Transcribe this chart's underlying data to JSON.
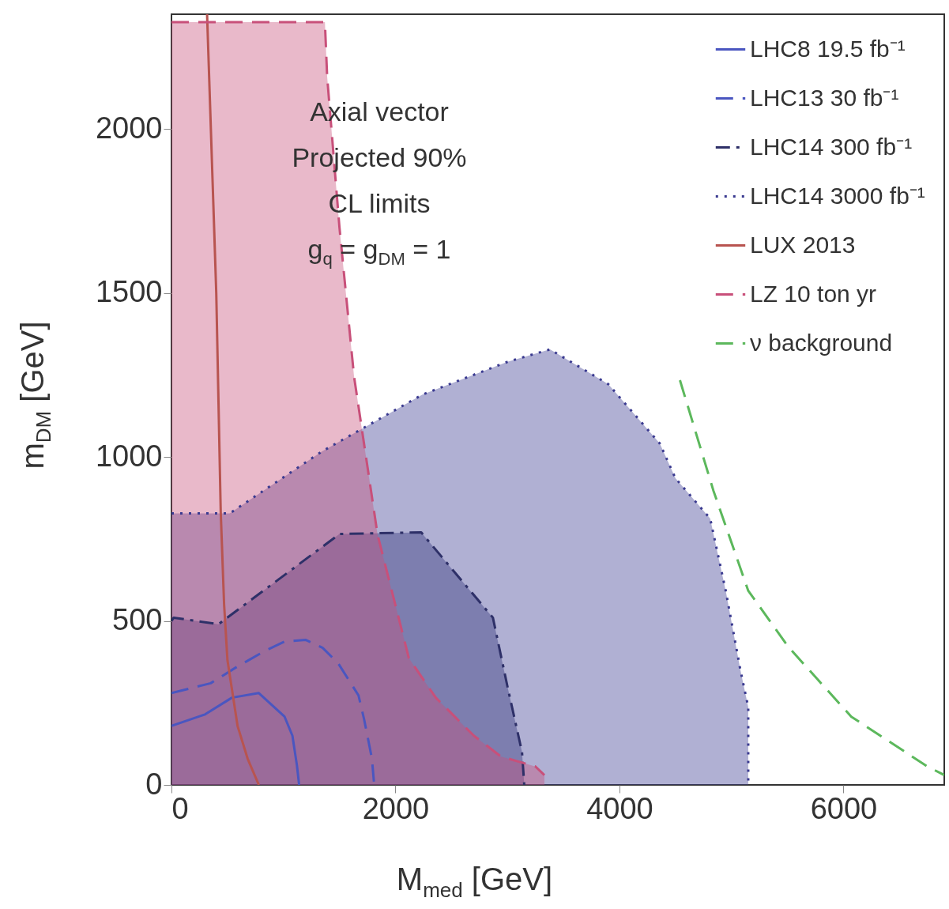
{
  "chart_data": {
    "type": "line",
    "xlabel": "M$_{med}$ [GeV]",
    "ylabel": "m$_{DM}$ [GeV]",
    "xlim": [
      0,
      6900
    ],
    "ylim": [
      0,
      2350
    ],
    "xticks": [
      0,
      2000,
      4000,
      6000
    ],
    "yticks": [
      0,
      500,
      1000,
      1500,
      2000
    ],
    "grid": false,
    "legend": "top right",
    "marker": "none",
    "annotations": [
      "Axial vector",
      "Projected 90%",
      "CL limits",
      "g$_{q}$ = g$_{DM}$ = 1"
    ],
    "series": [
      {
        "name": "LHC8 19.5 fb⁻¹",
        "color": "#4a56c0",
        "line_style": "solid",
        "x": [
          0,
          300,
          540,
          780,
          1010,
          1080,
          1120,
          1140
        ],
        "values": [
          180,
          215,
          266,
          280,
          208,
          150,
          60,
          0
        ]
      },
      {
        "name": "LHC13 30 fb⁻¹",
        "color": "#4a56c0",
        "line_style": "dashed",
        "x": [
          0,
          350,
          570,
          820,
          1010,
          1200,
          1350,
          1490,
          1670,
          1720,
          1790,
          1810
        ],
        "values": [
          280,
          310,
          357,
          406,
          437,
          442,
          418,
          370,
          273,
          200,
          80,
          0
        ]
      },
      {
        "name": "LHC14 300 fb⁻¹",
        "type": "area",
        "color": "#2e3068",
        "line_style": "dashdot",
        "x": [
          0,
          20,
          420,
          1500,
          2230,
          2500,
          2870,
          3000,
          3130,
          3150
        ],
        "values": [
          500,
          510,
          490,
          765,
          770,
          660,
          510,
          300,
          100,
          0
        ]
      },
      {
        "name": "LHC14 3000 fb⁻¹",
        "type": "area",
        "color": "#3a3a90",
        "line_style": "dotted",
        "x": [
          0,
          520,
          1345,
          2240,
          3000,
          3380,
          3900,
          4360,
          4500,
          4810,
          4950,
          5080,
          5150,
          5150
        ],
        "values": [
          828,
          828,
          1017,
          1190,
          1290,
          1328,
          1222,
          1041,
          935,
          812,
          590,
          350,
          237,
          0
        ]
      },
      {
        "name": "LUX 2013",
        "color": "#b85450",
        "line_style": "solid",
        "x": [
          318,
          400,
          440,
          470,
          500,
          590,
          680,
          780
        ],
        "values": [
          2350,
          1500,
          830,
          550,
          380,
          180,
          80,
          0
        ]
      },
      {
        "name": "LZ 10 ton yr",
        "type": "area",
        "color": "#c8507a",
        "line_style": "dashed",
        "x": [
          0,
          1370,
          1390,
          1500,
          1630,
          1840,
          2120,
          2360,
          2700,
          2940,
          3250,
          3330
        ],
        "values": [
          2326,
          2326,
          2160,
          1700,
          1246,
          763,
          386,
          266,
          150,
          87,
          56,
          30
        ]
      },
      {
        "name": "ν background",
        "color": "#5cb85c",
        "line_style": "dashed",
        "x": [
          4540,
          4840,
          5150,
          5510,
          6070,
          6750,
          6900
        ],
        "values": [
          1234,
          896,
          592,
          420,
          208,
          56,
          30
        ]
      }
    ]
  }
}
